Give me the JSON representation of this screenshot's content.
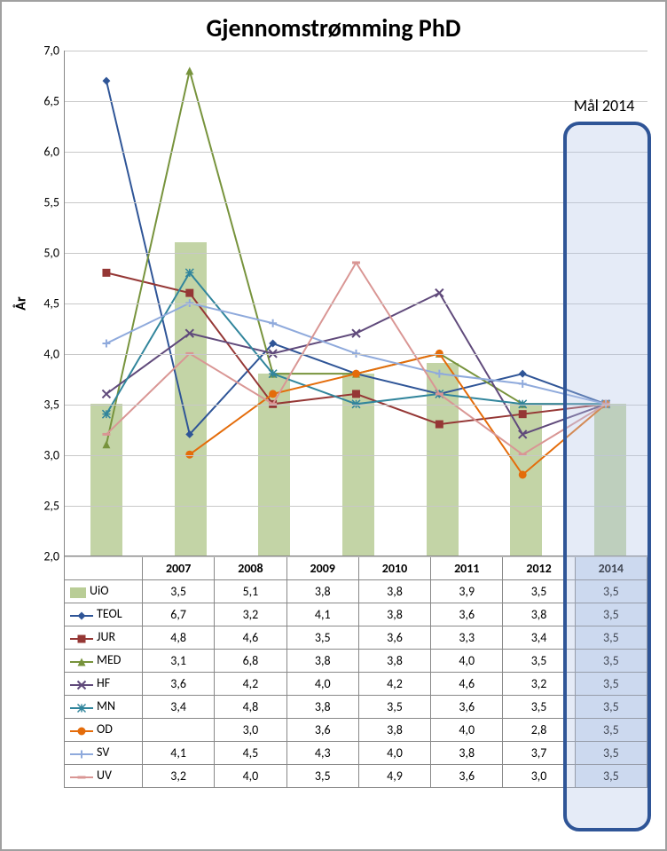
{
  "title": "Gjennomstrømming PhD",
  "y_axis_label": "År",
  "mal_label": "Mål 2014",
  "chart": {
    "type": "line+bar",
    "ylim": [
      2.0,
      7.0
    ],
    "ytick_step": 0.5,
    "grid_color": "#c8c8c8",
    "background_color": "#ffffff",
    "categories": [
      "2007",
      "2008",
      "2009",
      "2010",
      "2011",
      "2012",
      "2014"
    ],
    "bar_series": {
      "name": "UiO",
      "color": "#b9cd96",
      "values": [
        3.5,
        5.1,
        3.8,
        3.8,
        3.9,
        3.5,
        3.5
      ],
      "bar_width": 0.38
    },
    "line_series": [
      {
        "name": "TEOL",
        "color": "#2f5597",
        "marker": "diamond",
        "values": [
          6.7,
          3.2,
          4.1,
          3.8,
          3.6,
          3.8,
          3.5
        ]
      },
      {
        "name": "JUR",
        "color": "#953735",
        "marker": "square",
        "values": [
          4.8,
          4.6,
          3.5,
          3.6,
          3.3,
          3.4,
          3.5
        ]
      },
      {
        "name": "MED",
        "color": "#77933c",
        "marker": "triangle",
        "values": [
          3.1,
          6.8,
          3.8,
          3.8,
          4.0,
          3.5,
          3.5
        ]
      },
      {
        "name": "HF",
        "color": "#604a7b",
        "marker": "x",
        "values": [
          3.6,
          4.2,
          4.0,
          4.2,
          4.6,
          3.2,
          3.5
        ]
      },
      {
        "name": "MN",
        "color": "#31859c",
        "marker": "star",
        "values": [
          3.4,
          4.8,
          3.8,
          3.5,
          3.6,
          3.5,
          3.5
        ]
      },
      {
        "name": "OD",
        "color": "#e46c0a",
        "marker": "circle",
        "values": [
          null,
          3.0,
          3.6,
          3.8,
          4.0,
          2.8,
          3.5
        ]
      },
      {
        "name": "SV",
        "color": "#8faadc",
        "marker": "plus",
        "values": [
          4.1,
          4.5,
          4.3,
          4.0,
          3.8,
          3.7,
          3.5
        ]
      },
      {
        "name": "UV",
        "color": "#d99694",
        "marker": "dash",
        "values": [
          3.2,
          4.0,
          3.5,
          4.9,
          3.6,
          3.0,
          3.5
        ]
      }
    ]
  },
  "table": {
    "columns": [
      "",
      "2007",
      "2008",
      "2009",
      "2010",
      "2011",
      "2012",
      "2014"
    ],
    "rows": [
      {
        "series": "UiO",
        "values": [
          "3,5",
          "5,1",
          "3,8",
          "3,8",
          "3,9",
          "3,5",
          "3,5"
        ]
      },
      {
        "series": "TEOL",
        "values": [
          "6,7",
          "3,2",
          "4,1",
          "3,8",
          "3,6",
          "3,8",
          "3,5"
        ]
      },
      {
        "series": "JUR",
        "values": [
          "4,8",
          "4,6",
          "3,5",
          "3,6",
          "3,3",
          "3,4",
          "3,5"
        ]
      },
      {
        "series": "MED",
        "values": [
          "3,1",
          "6,8",
          "3,8",
          "3,8",
          "4,0",
          "3,5",
          "3,5"
        ]
      },
      {
        "series": "HF",
        "values": [
          "3,6",
          "4,2",
          "4,0",
          "4,2",
          "4,6",
          "3,2",
          "3,5"
        ]
      },
      {
        "series": "MN",
        "values": [
          "3,4",
          "4,8",
          "3,8",
          "3,5",
          "3,6",
          "3,5",
          "3,5"
        ]
      },
      {
        "series": "OD",
        "values": [
          "",
          "3,0",
          "3,6",
          "3,8",
          "4,0",
          "2,8",
          "3,5"
        ]
      },
      {
        "series": "SV",
        "values": [
          "4,1",
          "4,5",
          "4,3",
          "4,0",
          "3,8",
          "3,7",
          "3,5"
        ]
      },
      {
        "series": "UV",
        "values": [
          "3,2",
          "4,0",
          "3,5",
          "4,9",
          "3,6",
          "3,0",
          "3,5"
        ]
      }
    ]
  },
  "styling": {
    "title_fontsize": 28,
    "tick_fontsize": 14,
    "line_width": 2,
    "marker_size": 9
  }
}
